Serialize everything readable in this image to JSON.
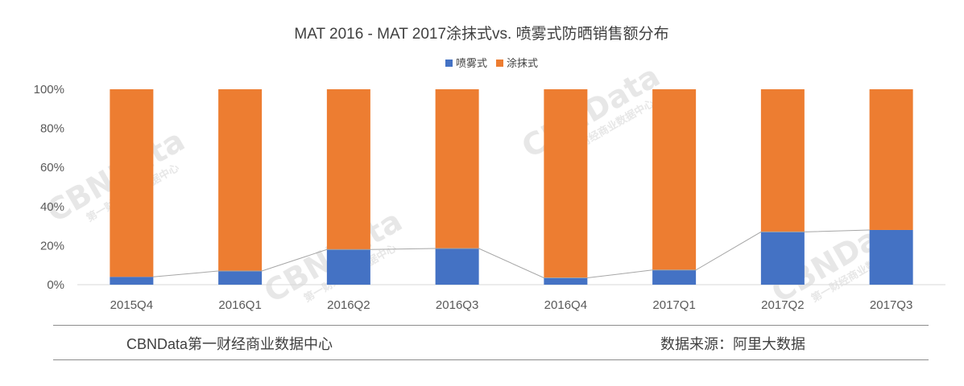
{
  "chart_data": {
    "type": "bar",
    "stacked": true,
    "percent_stacked": true,
    "title": "MAT 2016 - MAT 2017涂抹式vs. 喷雾式防晒销售额分布",
    "categories": [
      "2015Q4",
      "2016Q1",
      "2016Q2",
      "2016Q3",
      "2016Q4",
      "2017Q1",
      "2017Q2",
      "2017Q3"
    ],
    "series": [
      {
        "name": "喷雾式",
        "color": "#4472c4",
        "values": [
          4,
          7,
          18,
          18.5,
          3.5,
          7.5,
          27,
          28
        ]
      },
      {
        "name": "涂抹式",
        "color": "#ed7d31",
        "values": [
          96,
          93,
          82,
          81.5,
          96.5,
          92.5,
          73,
          72
        ]
      }
    ],
    "series_connector_line": true,
    "yticks": [
      "0%",
      "20%",
      "40%",
      "60%",
      "80%",
      "100%"
    ],
    "ylim": [
      0,
      100
    ],
    "legend_position": "top-center",
    "grid": false
  },
  "watermark": {
    "brand": "CBNData",
    "sub": "第一财经商业数据中心"
  },
  "footer": {
    "left": "CBNData第一财经商业数据中心",
    "right": "数据来源：阿里大数据"
  }
}
